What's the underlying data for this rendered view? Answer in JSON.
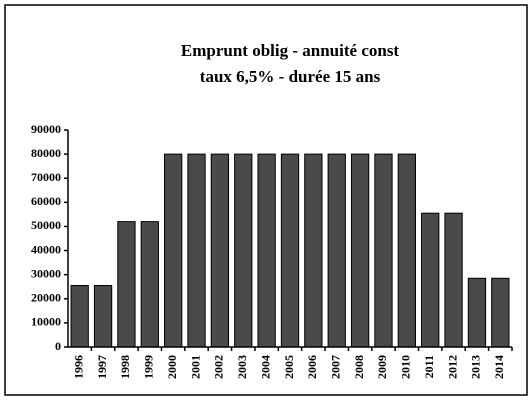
{
  "chart_data": {
    "type": "bar",
    "title": "Emprunt oblig - annuité const",
    "subtitle": "taux 6,5% - durée 15 ans",
    "categories": [
      "1996",
      "1997",
      "1998",
      "1999",
      "2000",
      "2001",
      "2002",
      "2003",
      "2004",
      "2005",
      "2006",
      "2007",
      "2008",
      "2009",
      "2010",
      "2011",
      "2012",
      "2013",
      "2014"
    ],
    "values": [
      25500,
      25500,
      52000,
      52000,
      80000,
      80000,
      80000,
      80000,
      80000,
      80000,
      80000,
      80000,
      80000,
      80000,
      80000,
      55500,
      55500,
      28500,
      28500
    ],
    "color": "#4a4a4a",
    "ylim": [
      0,
      90000
    ],
    "yticks": [
      0,
      10000,
      20000,
      30000,
      40000,
      50000,
      60000,
      70000,
      80000,
      90000
    ],
    "grid": false
  }
}
